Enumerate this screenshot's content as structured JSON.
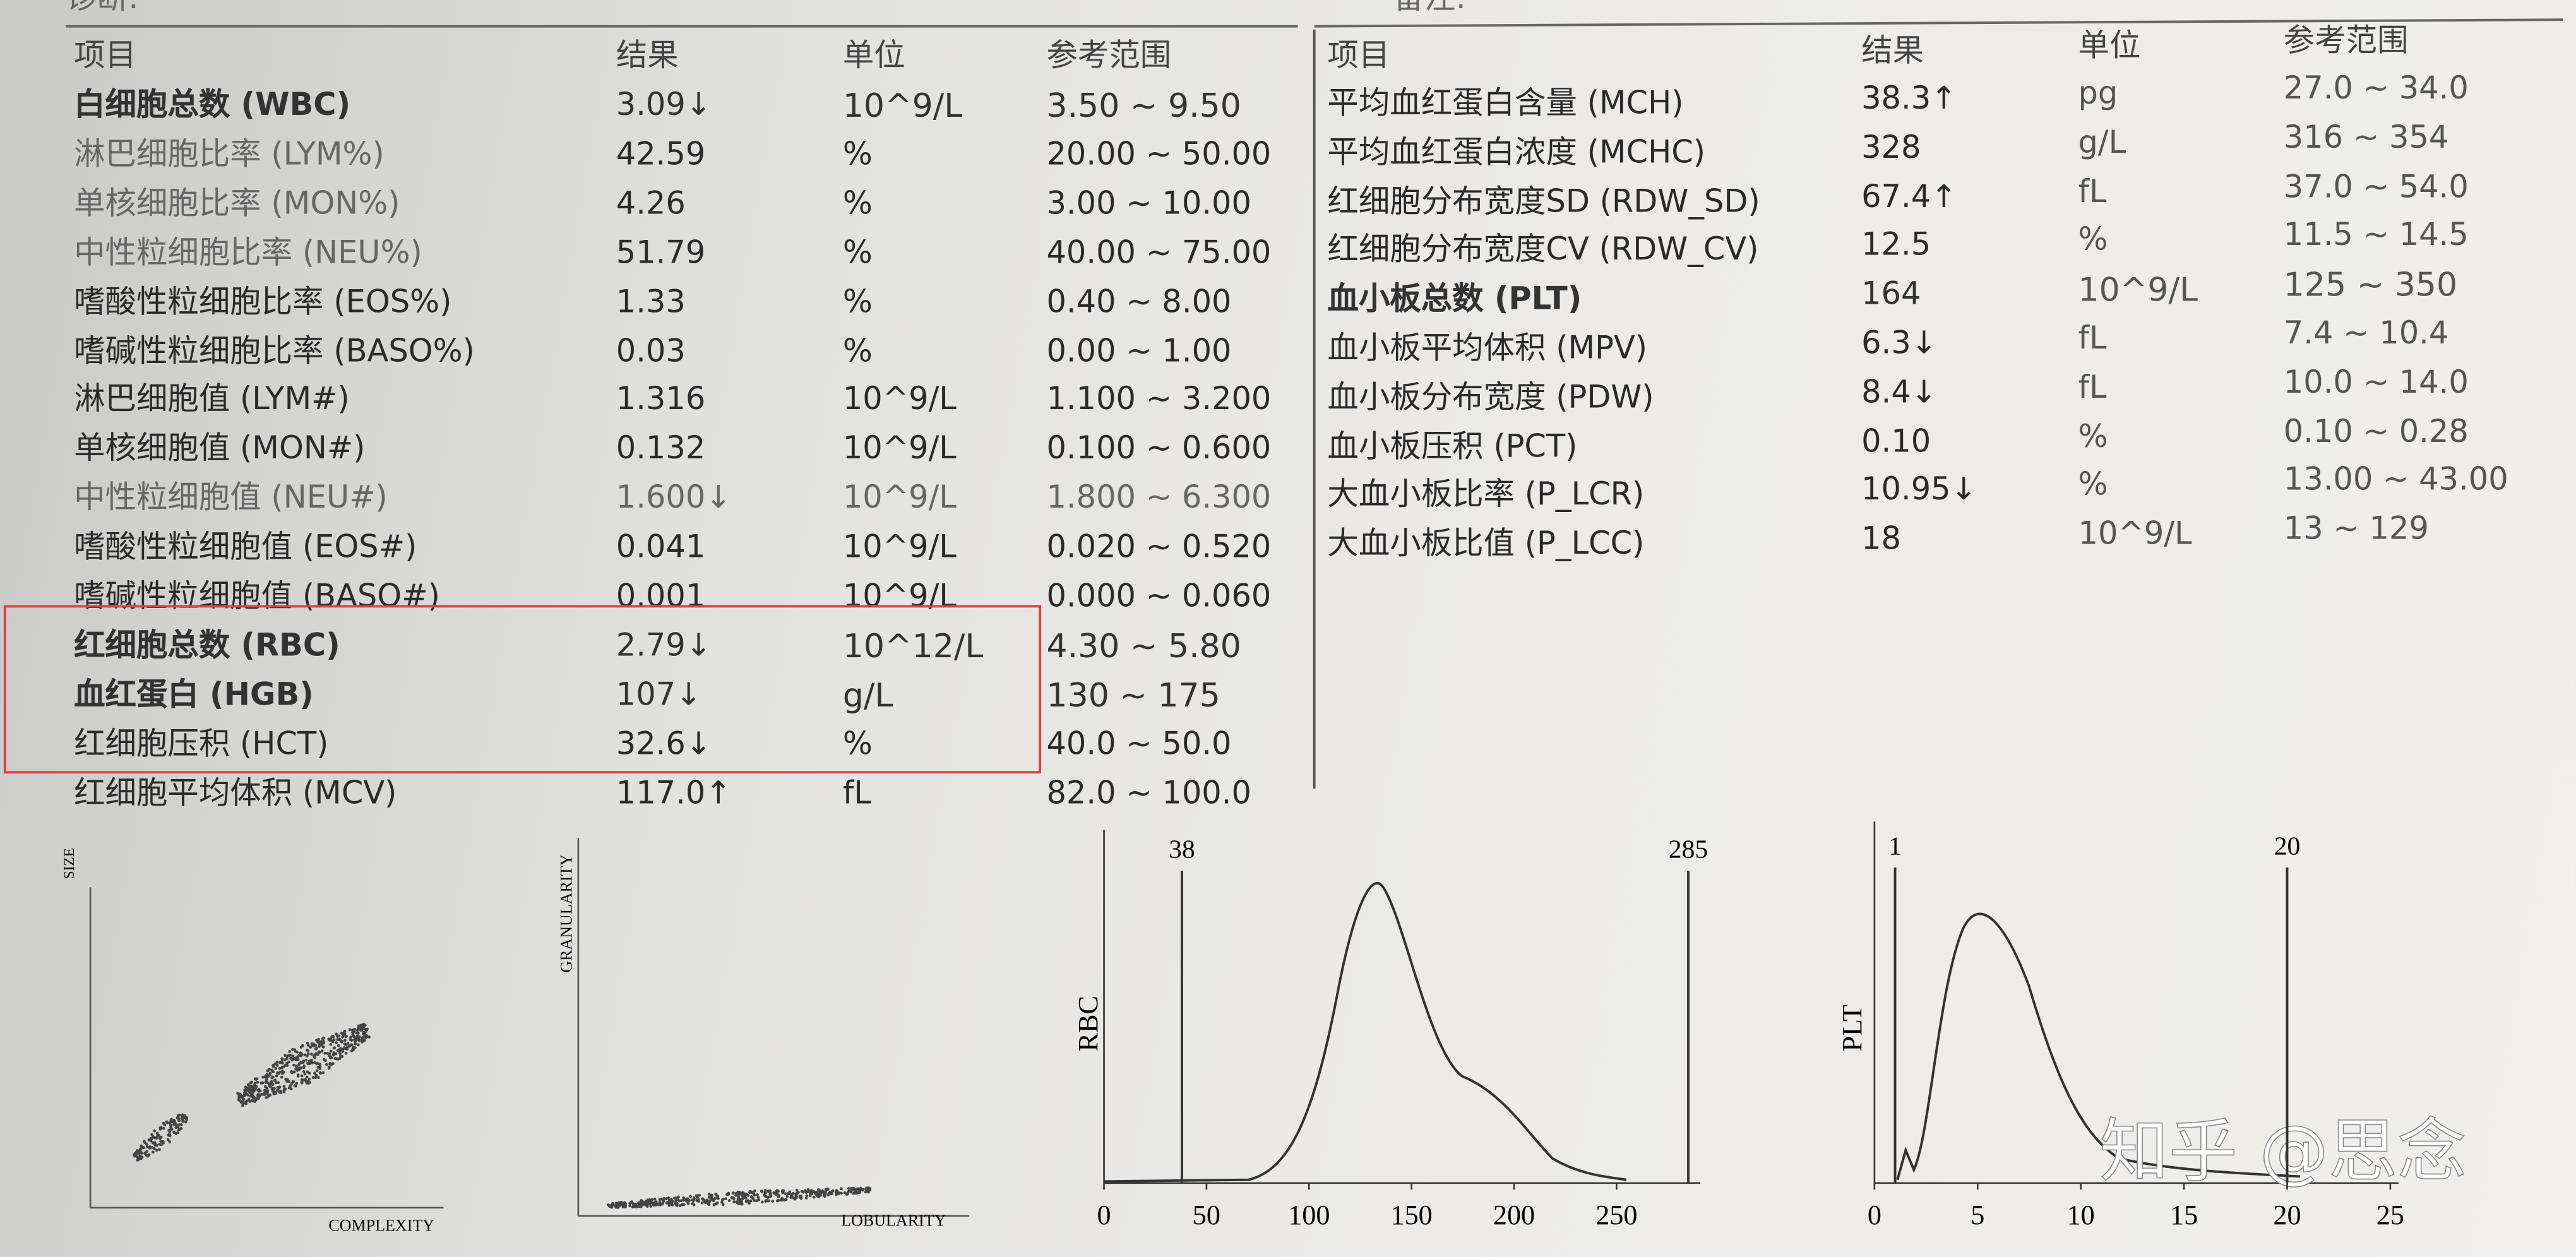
{
  "top_left_label": "诊断:",
  "top_right_label": "备注:",
  "left_table": {
    "header": [
      "项目",
      "结果",
      "单位",
      "参考范围"
    ],
    "rows": [
      [
        "白细胞总数 (WBC)",
        "3.09↓",
        "10^9/L",
        "3.50 ~ 9.50"
      ],
      [
        "淋巴细胞比率 (LYM%)",
        "42.59",
        "%",
        "20.00 ~ 50.00"
      ],
      [
        "单核细胞比率 (MON%)",
        "4.26",
        "%",
        "3.00 ~ 10.00"
      ],
      [
        "中性粒细胞比率 (NEU%)",
        "51.79",
        "%",
        "40.00 ~ 75.00"
      ],
      [
        "嗜酸性粒细胞比率 (EOS%)",
        "1.33",
        "%",
        "0.40 ~ 8.00"
      ],
      [
        "嗜碱性粒细胞比率 (BASO%)",
        "0.03",
        "%",
        "0.00 ~ 1.00"
      ],
      [
        "淋巴细胞值 (LYM#)",
        "1.316",
        "10^9/L",
        "1.100 ~ 3.200"
      ],
      [
        "单核细胞值 (MON#)",
        "0.132",
        "10^9/L",
        "0.100 ~ 0.600"
      ],
      [
        "中性粒细胞值 (NEU#)",
        "1.600↓",
        "10^9/L",
        "1.800 ~ 6.300"
      ],
      [
        "嗜酸性粒细胞值 (EOS#)",
        "0.041",
        "10^9/L",
        "0.020 ~ 0.520"
      ],
      [
        "嗜碱性粒细胞值 (BASO#)",
        "0.001",
        "10^9/L",
        "0.000 ~ 0.060"
      ],
      [
        "红细胞总数 (RBC)",
        "2.79↓",
        "10^12/L",
        "4.30 ~ 5.80"
      ],
      [
        "血红蛋白 (HGB)",
        "107↓",
        "g/L",
        "130 ~ 175"
      ],
      [
        "红细胞压积 (HCT)",
        "32.6↓",
        "%",
        "40.0 ~ 50.0"
      ],
      [
        "红细胞平均体积 (MCV)",
        "117.0↑",
        "fL",
        "82.0 ~ 100.0"
      ]
    ]
  },
  "right_table": {
    "header": [
      "项目",
      "结果",
      "单位",
      "参考范围"
    ],
    "rows": [
      [
        "平均血红蛋白含量 (MCH)",
        "38.3↑",
        "pg",
        "27.0 ~ 34.0"
      ],
      [
        "平均血红蛋白浓度 (MCHC)",
        "328",
        "g/L",
        "316 ~ 354"
      ],
      [
        "红细胞分布宽度SD (RDW_SD)",
        "67.4↑",
        "fL",
        "37.0 ~ 54.0"
      ],
      [
        "红细胞分布宽度CV (RDW_CV)",
        "12.5",
        "%",
        "11.5 ~ 14.5"
      ],
      [
        "血小板总数 (PLT)",
        "164",
        "10^9/L",
        "125 ~ 350"
      ],
      [
        "血小板平均体积 (MPV)",
        "6.3↓",
        "fL",
        "7.4 ~ 10.4"
      ],
      [
        "血小板分布宽度 (PDW)",
        "8.4↓",
        "fL",
        "10.0 ~ 14.0"
      ],
      [
        "血小板压积 (PCT)",
        "0.10",
        "%",
        "0.10 ~ 0.28"
      ],
      [
        "大血小板比率 (P_LCR)",
        "10.95↓",
        "%",
        "13.00 ~ 43.00"
      ],
      [
        "大血小板比值 (P_LCC)",
        "18",
        "10^9/L",
        "13 ~ 129"
      ]
    ]
  },
  "scatter_1": {
    "y_label": "SIZE",
    "x_label": "COMPLEXITY"
  },
  "scatter_2": {
    "y_label": "GRANULARITY",
    "x_label": "LOBULARITY"
  },
  "rbc_histogram": {
    "y_label": "RBC",
    "markers": [
      38,
      285
    ],
    "xticks": [
      0,
      50,
      100,
      150,
      200,
      250
    ]
  },
  "plt_histogram": {
    "y_label": "PLT",
    "markers": [
      1,
      20
    ],
    "xticks": [
      0,
      5,
      10,
      15,
      20,
      25
    ]
  },
  "watermark": "知乎 @思念"
}
